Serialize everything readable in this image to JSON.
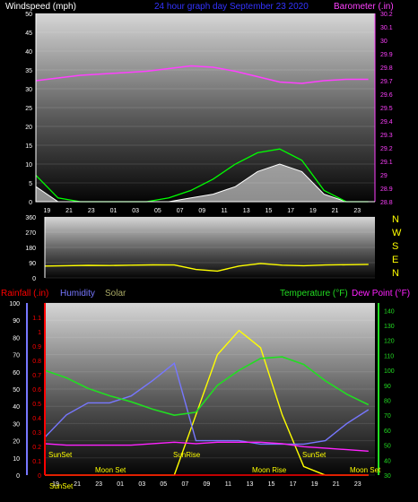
{
  "header": {
    "windspeed_label": "Windspeed (mph)",
    "date_label": "24 hour graph day   September 23 2020",
    "barometer_label": "Barometer (.in)"
  },
  "colors": {
    "background": "#000000",
    "barometer": "#ff40ff",
    "wind": "#ffffff",
    "gust": "#00ff00",
    "direction": "#ffff00",
    "rain": "#ff0000",
    "humidity": "#7777ff",
    "solar": "#ffff00",
    "temperature": "#22dd22",
    "dewpoint": "#ff22ff",
    "date_text": "#3333ff"
  },
  "x_ticks": [
    "19",
    "21",
    "23",
    "01",
    "03",
    "05",
    "07",
    "09",
    "11",
    "13",
    "15",
    "17",
    "19",
    "21",
    "23"
  ],
  "chart_data": [
    {
      "type": "area",
      "ylabel": "Windspeed (mph)",
      "y2label": "Barometer (.in)",
      "ylim": [
        0,
        50
      ],
      "y2lim": [
        28.8,
        30.2
      ],
      "yticks": [
        "0",
        "5",
        "10",
        "15",
        "20",
        "25",
        "30",
        "35",
        "40",
        "45",
        "50"
      ],
      "y2ticks": [
        "28.8",
        "28.9",
        "29",
        "29.1",
        "29.2",
        "29.3",
        "29.4",
        "29.5",
        "29.6",
        "29.7",
        "29.8",
        "29.9",
        "30",
        "30.1",
        "30.2"
      ],
      "hours": [
        -6,
        -4,
        -2,
        0,
        2,
        4,
        6,
        8,
        10,
        12,
        14,
        16,
        18,
        20,
        22,
        24
      ],
      "series": [
        {
          "key": "barometer",
          "values": [
            29.7,
            29.72,
            29.74,
            29.75,
            29.76,
            29.77,
            29.79,
            29.81,
            29.8,
            29.77,
            29.73,
            29.69,
            29.68,
            29.7,
            29.71,
            29.71
          ]
        },
        {
          "key": "wind",
          "values": [
            4,
            0,
            0,
            0,
            0,
            0,
            0,
            1,
            2,
            4,
            8,
            10,
            8,
            2,
            0,
            0
          ]
        },
        {
          "key": "gust",
          "values": [
            7,
            1,
            0,
            0,
            0,
            0,
            1,
            3,
            6,
            10,
            13,
            14,
            11,
            3,
            0,
            0
          ]
        }
      ]
    },
    {
      "type": "line",
      "ylim": [
        0,
        360
      ],
      "yticks": [
        "0",
        "90",
        "180",
        "270",
        "360"
      ],
      "compass": [
        "N",
        "W",
        "S",
        "E",
        "N"
      ],
      "hours": [
        -6,
        -4,
        -2,
        0,
        2,
        4,
        6,
        8,
        10,
        12,
        14,
        16,
        18,
        20,
        22,
        24
      ],
      "series": [
        {
          "key": "direction",
          "values": [
            70,
            72,
            74,
            73,
            75,
            77,
            76,
            50,
            40,
            70,
            85,
            75,
            72,
            76,
            78,
            80
          ]
        }
      ]
    },
    {
      "type": "line",
      "legend": [
        "Rainfall (.in)",
        "Humidity",
        "Solar",
        "Temperature (°F)",
        "Dew Point (°F)"
      ],
      "ylim": [
        0,
        100
      ],
      "y2lim": [
        0,
        1.2
      ],
      "y3lim": [
        30,
        145
      ],
      "yticks": [
        "0",
        "10",
        "20",
        "30",
        "40",
        "50",
        "60",
        "70",
        "80",
        "90",
        "100"
      ],
      "y2ticks": [
        "0",
        "0.1",
        "0.2",
        "0.3",
        "0.4",
        "0.5",
        "0.6",
        "0.7",
        "0.8",
        "0.9",
        "1",
        "1.1"
      ],
      "y3ticks": [
        "30",
        "40",
        "50",
        "60",
        "70",
        "80",
        "90",
        "100",
        "110",
        "120",
        "130",
        "140"
      ],
      "annotations": [
        "SunSet",
        "Moon Set",
        "SunRise",
        "Moon Rise",
        "SunSet",
        "Moon Set",
        "SunSet"
      ],
      "hours": [
        -6,
        -4,
        -2,
        0,
        2,
        4,
        6,
        8,
        10,
        12,
        14,
        16,
        18,
        20,
        22,
        24
      ],
      "series": [
        {
          "key": "temperature",
          "values": [
            100,
            95,
            88,
            83,
            79,
            74,
            70,
            72,
            90,
            100,
            108,
            109,
            104,
            93,
            84,
            77
          ]
        },
        {
          "key": "dewpoint",
          "values": [
            51,
            50,
            50,
            50,
            50,
            51,
            52,
            51,
            52,
            52,
            52,
            51,
            49,
            48,
            47,
            46
          ]
        },
        {
          "key": "humidity",
          "values": [
            22,
            35,
            42,
            42,
            46,
            55,
            65,
            20,
            20,
            20,
            18,
            18,
            18,
            20,
            30,
            38
          ]
        },
        {
          "key": "rain",
          "values": [
            0,
            0,
            0,
            0,
            0,
            0,
            0,
            0,
            0,
            0,
            0,
            0,
            0,
            0,
            0,
            0
          ]
        },
        {
          "key": "solar",
          "values": [
            0,
            0,
            0,
            0,
            0,
            0,
            0,
            35,
            70,
            84,
            74,
            35,
            5,
            0,
            0,
            0
          ]
        }
      ]
    }
  ]
}
